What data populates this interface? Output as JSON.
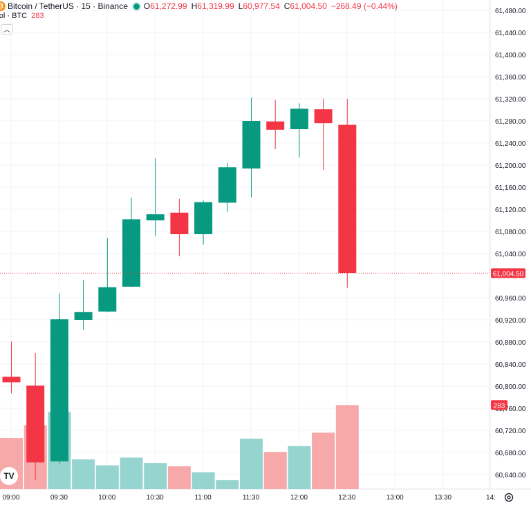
{
  "legend": {
    "symbol_icon": "bitcoin-coin-icon",
    "title": "Bitcoin / TetherUS · 15 · Binance",
    "status_color": "#089981",
    "ohlc": [
      {
        "key": "O",
        "value": "61,272.99"
      },
      {
        "key": "H",
        "value": "61,319.99"
      },
      {
        "key": "L",
        "value": "60,977.54"
      },
      {
        "key": "C",
        "value": "61,004.50"
      }
    ],
    "change": "−268.49 (−0.44%)"
  },
  "volume_legend": {
    "label": "Vol · BTC",
    "value": "283"
  },
  "collapse_icon": "chevron-up-icon",
  "logo_text": "TV",
  "colors": {
    "up": "#089981",
    "down": "#f23645",
    "up_volume": "#96d5cf",
    "down_volume": "#f7a9a9",
    "grid": "#f0f3fa"
  },
  "chart_data": {
    "type": "candlestick",
    "y_ticks": [
      "61,480.00",
      "61,440.00",
      "61,400.00",
      "61,360.00",
      "61,320.00",
      "61,280.00",
      "61,240.00",
      "61,200.00",
      "61,160.00",
      "61,120.00",
      "61,080.00",
      "61,040.00",
      "60,960.00",
      "60,920.00",
      "60,880.00",
      "60,840.00",
      "60,800.00",
      "60,760.00",
      "60,720.00",
      "60,680.00",
      "60,640.00"
    ],
    "x_ticks": [
      "09:00",
      "09:30",
      "10:00",
      "10:30",
      "11:00",
      "11:30",
      "12:00",
      "12:30",
      "13:00",
      "13:30",
      "14:"
    ],
    "last_price": 61004.5,
    "last_price_label": "61,004.50",
    "last_volume_label": "283",
    "candles": [
      {
        "o": 60817,
        "h": 60881,
        "l": 60787,
        "c": 60807,
        "v": 172
      },
      {
        "o": 60801,
        "h": 60860,
        "l": 60630,
        "c": 60662,
        "v": 215
      },
      {
        "o": 60664,
        "h": 60968,
        "l": 60660,
        "c": 60921,
        "v": 260
      },
      {
        "o": 60920,
        "h": 60992,
        "l": 60902,
        "c": 60934,
        "v": 100
      },
      {
        "o": 60935,
        "h": 61068,
        "l": 60934,
        "c": 60979,
        "v": 80
      },
      {
        "o": 60980,
        "h": 61141,
        "l": 60979,
        "c": 61102,
        "v": 106
      },
      {
        "o": 61100,
        "h": 61212,
        "l": 61071,
        "c": 61111,
        "v": 88
      },
      {
        "o": 61114,
        "h": 61139,
        "l": 61035,
        "c": 61075,
        "v": 77
      },
      {
        "o": 61075,
        "h": 61136,
        "l": 61056,
        "c": 61133,
        "v": 57
      },
      {
        "o": 61132,
        "h": 61204,
        "l": 61115,
        "c": 61196,
        "v": 30
      },
      {
        "o": 61194,
        "h": 61322,
        "l": 61142,
        "c": 61280,
        "v": 170
      },
      {
        "o": 61279,
        "h": 61318,
        "l": 61229,
        "c": 61264,
        "v": 125
      },
      {
        "o": 61265,
        "h": 61312,
        "l": 61214,
        "c": 61302,
        "v": 145
      },
      {
        "o": 61301,
        "h": 61320,
        "l": 61191,
        "c": 61276,
        "v": 190
      },
      {
        "o": 61273,
        "h": 61320,
        "l": 60978,
        "c": 61005,
        "v": 283
      }
    ]
  }
}
